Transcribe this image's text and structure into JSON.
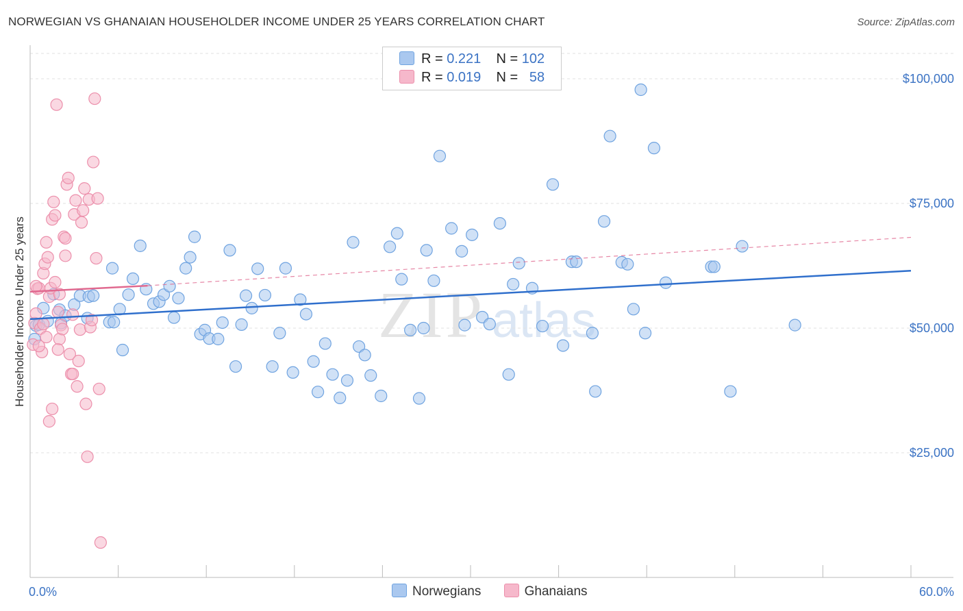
{
  "header": {
    "title": "NORWEGIAN VS GHANAIAN HOUSEHOLDER INCOME UNDER 25 YEARS CORRELATION CHART",
    "source": "Source: ZipAtlas.com"
  },
  "watermark": {
    "zip": "ZIP",
    "atlas": "atlas"
  },
  "legend": {
    "rows": [
      {
        "r_label": "R =",
        "r_value": "0.221",
        "n_label": "N =",
        "n_value": "102",
        "color": "#aac8ef"
      },
      {
        "r_label": "R =",
        "r_value": "0.019",
        "n_label": "N =",
        "n_value": "58",
        "color": "#f6b8cb"
      }
    ]
  },
  "bottom_legend": [
    {
      "label": "Norwegians",
      "color": "#aac8ef"
    },
    {
      "label": "Ghanaians",
      "color": "#f6b8cb"
    }
  ],
  "chart_data": {
    "type": "scatter",
    "title": "NORWEGIAN VS GHANAIAN HOUSEHOLDER INCOME UNDER 25 YEARS CORRELATION CHART",
    "ylabel": "Householder Income Under 25 years",
    "xlabel": "",
    "xlim": [
      0,
      60
    ],
    "ylim": [
      0,
      107000
    ],
    "x_tick_labels": [
      "0.0%",
      "60.0%"
    ],
    "y_ticks": [
      25000,
      50000,
      75000,
      100000
    ],
    "y_tick_labels": [
      "$25,000",
      "$50,000",
      "$75,000",
      "$100,000"
    ],
    "grid": "horizontal dashed",
    "legend_placement": "top-center",
    "series": [
      {
        "name": "Norwegians",
        "color": "#6fa3e0",
        "fill": "#aac8ef",
        "trend": {
          "x": [
            0,
            60
          ],
          "y": [
            51800,
            61500
          ],
          "style": "solid",
          "color": "#2f6fcc"
        },
        "points": [
          [
            0.3,
            47800
          ],
          [
            0.4,
            50500
          ],
          [
            0.9,
            54000
          ],
          [
            1.6,
            56800
          ],
          [
            2.0,
            53700
          ],
          [
            2.1,
            51000
          ],
          [
            2.4,
            52500
          ],
          [
            3.0,
            54700
          ],
          [
            3.4,
            56500
          ],
          [
            3.9,
            52000
          ],
          [
            4.0,
            56300
          ],
          [
            4.3,
            56500
          ],
          [
            5.4,
            51200
          ],
          [
            5.6,
            62000
          ],
          [
            5.7,
            51200
          ],
          [
            6.1,
            53800
          ],
          [
            6.3,
            45600
          ],
          [
            6.7,
            56700
          ],
          [
            7.0,
            59900
          ],
          [
            7.5,
            66500
          ],
          [
            7.9,
            57800
          ],
          [
            8.4,
            54900
          ],
          [
            8.8,
            55300
          ],
          [
            9.1,
            56700
          ],
          [
            9.5,
            58400
          ],
          [
            9.8,
            52100
          ],
          [
            10.1,
            56000
          ],
          [
            10.6,
            62000
          ],
          [
            10.9,
            64200
          ],
          [
            11.2,
            68300
          ],
          [
            11.6,
            48800
          ],
          [
            11.9,
            49600
          ],
          [
            12.2,
            47900
          ],
          [
            12.8,
            47800
          ],
          [
            13.1,
            51100
          ],
          [
            13.6,
            65600
          ],
          [
            14.0,
            42300
          ],
          [
            14.4,
            50700
          ],
          [
            14.7,
            56500
          ],
          [
            15.1,
            54000
          ],
          [
            15.5,
            61900
          ],
          [
            16.0,
            56600
          ],
          [
            16.5,
            42300
          ],
          [
            17.0,
            49000
          ],
          [
            17.4,
            62000
          ],
          [
            17.9,
            41100
          ],
          [
            18.4,
            55700
          ],
          [
            18.8,
            52800
          ],
          [
            19.3,
            43300
          ],
          [
            19.6,
            37200
          ],
          [
            20.1,
            46900
          ],
          [
            20.6,
            40700
          ],
          [
            21.1,
            36000
          ],
          [
            21.6,
            39500
          ],
          [
            22.0,
            67200
          ],
          [
            22.4,
            46300
          ],
          [
            22.8,
            44600
          ],
          [
            23.2,
            40500
          ],
          [
            23.9,
            36400
          ],
          [
            24.5,
            66300
          ],
          [
            25.0,
            69000
          ],
          [
            25.3,
            59800
          ],
          [
            25.9,
            49600
          ],
          [
            26.5,
            35900
          ],
          [
            26.8,
            50000
          ],
          [
            27.0,
            65600
          ],
          [
            27.5,
            59500
          ],
          [
            27.9,
            84500
          ],
          [
            28.7,
            70000
          ],
          [
            29.4,
            65400
          ],
          [
            29.6,
            50600
          ],
          [
            30.1,
            68700
          ],
          [
            30.8,
            52200
          ],
          [
            31.3,
            50800
          ],
          [
            32.0,
            71000
          ],
          [
            32.6,
            40700
          ],
          [
            32.9,
            58800
          ],
          [
            33.3,
            63000
          ],
          [
            34.2,
            58000
          ],
          [
            34.9,
            50400
          ],
          [
            35.6,
            78800
          ],
          [
            36.3,
            46500
          ],
          [
            36.9,
            63300
          ],
          [
            37.2,
            63300
          ],
          [
            38.3,
            49000
          ],
          [
            38.5,
            37300
          ],
          [
            39.1,
            71400
          ],
          [
            39.5,
            88500
          ],
          [
            40.3,
            63200
          ],
          [
            40.7,
            62800
          ],
          [
            41.1,
            53800
          ],
          [
            41.6,
            97800
          ],
          [
            41.9,
            49000
          ],
          [
            42.5,
            86100
          ],
          [
            43.3,
            59100
          ],
          [
            46.4,
            62300
          ],
          [
            46.6,
            62300
          ],
          [
            47.7,
            37300
          ],
          [
            48.5,
            66400
          ],
          [
            52.1,
            50600
          ],
          [
            0.6,
            50700
          ],
          [
            1.2,
            51400
          ]
        ]
      },
      {
        "name": "Ghanaians",
        "color": "#ec8fab",
        "fill": "#f6b8cb",
        "trend": {
          "x": [
            0,
            8
          ],
          "y": [
            57300,
            58500
          ],
          "style": "solid",
          "color": "#e0698f",
          "extension": {
            "x": [
              8,
              60
            ],
            "y": [
              58500,
              68200
            ],
            "style": "dashed"
          }
        },
        "points": [
          [
            0.2,
            46700
          ],
          [
            0.3,
            51000
          ],
          [
            0.4,
            52900
          ],
          [
            0.5,
            57900
          ],
          [
            0.6,
            58000
          ],
          [
            0.7,
            49900
          ],
          [
            0.8,
            45200
          ],
          [
            0.9,
            61000
          ],
          [
            1.0,
            62900
          ],
          [
            1.1,
            67200
          ],
          [
            1.2,
            64200
          ],
          [
            1.3,
            56300
          ],
          [
            1.4,
            58000
          ],
          [
            1.5,
            71800
          ],
          [
            1.6,
            75300
          ],
          [
            1.7,
            72600
          ],
          [
            1.8,
            94800
          ],
          [
            1.9,
            53200
          ],
          [
            2.0,
            47800
          ],
          [
            2.1,
            50600
          ],
          [
            2.2,
            49800
          ],
          [
            2.3,
            68300
          ],
          [
            2.4,
            64500
          ],
          [
            2.5,
            78800
          ],
          [
            2.6,
            80100
          ],
          [
            2.7,
            44800
          ],
          [
            2.8,
            40800
          ],
          [
            2.9,
            52700
          ],
          [
            3.0,
            72800
          ],
          [
            3.1,
            75600
          ],
          [
            3.2,
            38300
          ],
          [
            3.3,
            43400
          ],
          [
            3.4,
            49700
          ],
          [
            3.5,
            71200
          ],
          [
            3.6,
            73600
          ],
          [
            3.7,
            78000
          ],
          [
            3.8,
            34800
          ],
          [
            3.9,
            24200
          ],
          [
            4.0,
            75800
          ],
          [
            4.1,
            50200
          ],
          [
            4.2,
            51600
          ],
          [
            4.3,
            83300
          ],
          [
            4.4,
            96000
          ],
          [
            4.5,
            64000
          ],
          [
            4.6,
            76000
          ],
          [
            4.7,
            37800
          ],
          [
            4.8,
            7000
          ],
          [
            1.3,
            31300
          ],
          [
            1.5,
            33800
          ],
          [
            2.0,
            56800
          ],
          [
            0.9,
            50800
          ],
          [
            1.1,
            48200
          ],
          [
            0.4,
            58400
          ],
          [
            2.4,
            68000
          ],
          [
            2.9,
            40800
          ],
          [
            1.7,
            59200
          ],
          [
            0.6,
            46400
          ],
          [
            1.9,
            45700
          ]
        ]
      }
    ]
  }
}
